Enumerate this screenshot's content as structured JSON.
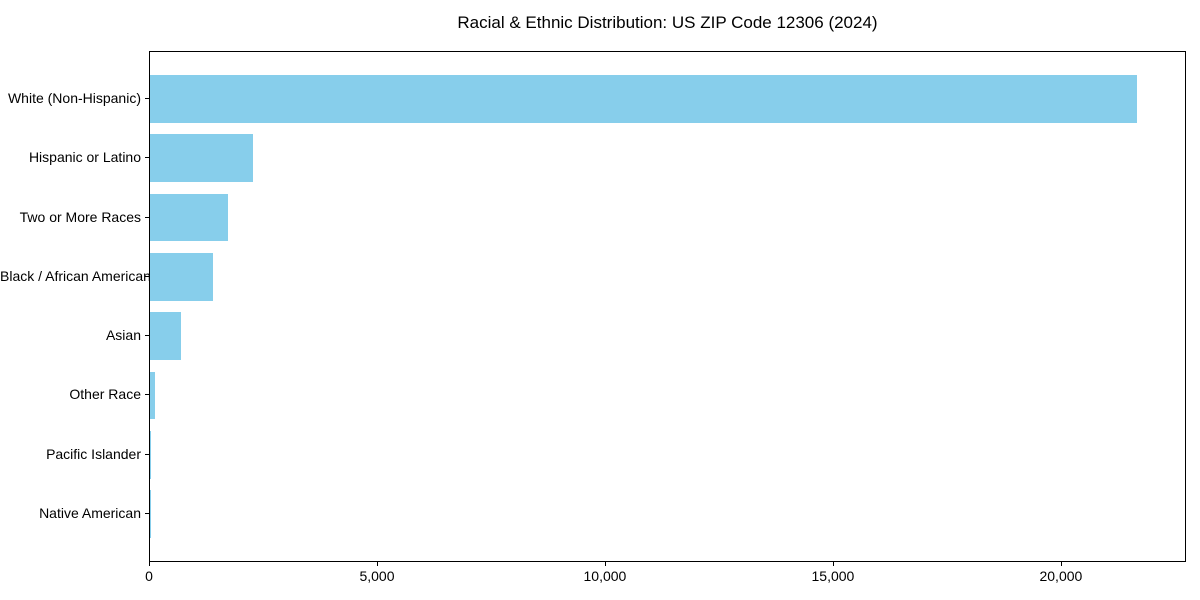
{
  "chart_data": {
    "type": "bar",
    "orientation": "horizontal",
    "title": "Racial & Ethnic Distribution: US ZIP Code 12306 (2024)",
    "categories": [
      "White (Non-Hispanic)",
      "Hispanic or Latino",
      "Two or More Races",
      "Black / African American",
      "Asian",
      "Other Race",
      "Pacific Islander",
      "Native American"
    ],
    "values": [
      21640,
      2250,
      1700,
      1390,
      680,
      110,
      20,
      5
    ],
    "xlabel": "",
    "ylabel": "",
    "xlim": [
      0,
      22700
    ],
    "xticks": [
      0,
      5000,
      10000,
      15000,
      20000
    ],
    "xtick_labels": [
      "0",
      "5,000",
      "10,000",
      "15,000",
      "20,000"
    ],
    "bar_color": "#87CEEB",
    "text_color": "#000000",
    "background_color": "#ffffff",
    "grid": false,
    "legend": false
  }
}
